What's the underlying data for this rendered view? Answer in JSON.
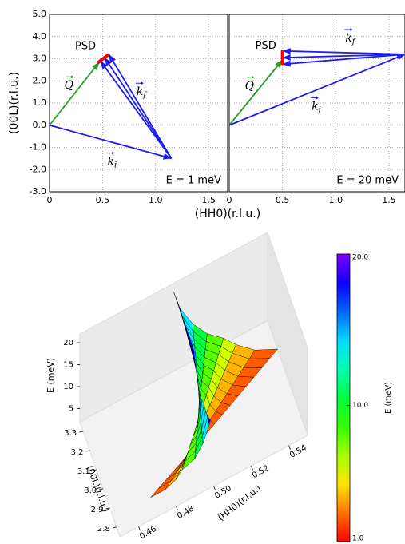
{
  "chart_data": [
    {
      "type": "vector",
      "ylabel": "(00L)(r.l.u.)",
      "xlabel": "(HH0)(r.l.u.)",
      "annotation": "E = 1 meV",
      "xlim": [
        0,
        1.68
      ],
      "ylim": [
        -3,
        5
      ],
      "xticks": [
        0,
        0.5,
        {
          "value": 1,
          "label": "1.0"
        },
        1.5
      ],
      "yticks": [
        {
          "value": -3,
          "label": "-3.0"
        },
        {
          "value": -2,
          "label": "-2.0"
        },
        {
          "value": -1,
          "label": "-1.0"
        },
        {
          "value": 0,
          "label": "0.0"
        },
        {
          "value": 1,
          "label": "1.0"
        },
        {
          "value": 2,
          "label": "2.0"
        },
        {
          "value": 3,
          "label": "3.0"
        },
        {
          "value": 4,
          "label": "4.0"
        },
        {
          "value": 5,
          "label": "5.0"
        }
      ],
      "grid": true,
      "vectors": [
        {
          "label": {
            "symbol": "Q",
            "vec": true
          },
          "color": "#22a022",
          "arrow": true,
          "x": [
            0,
            0.47
          ],
          "y": [
            0,
            2.85
          ]
        },
        {
          "label": {
            "symbol": "k",
            "subscript": "i",
            "vec": true
          },
          "color": "#1c1cf0",
          "arrow": true,
          "x": [
            0,
            1.15
          ],
          "y": [
            0,
            -1.5
          ]
        },
        {
          "color": "#1c1cf0",
          "arrow": true,
          "x": [
            1.15,
            0.48
          ],
          "y": [
            -1.5,
            2.9
          ]
        },
        {
          "label": {
            "symbol": "k",
            "subscript": "f",
            "vec": true
          },
          "color": "#1c1cf0",
          "arrow": true,
          "x": [
            1.15,
            0.52
          ],
          "y": [
            -1.5,
            3.05
          ]
        },
        {
          "color": "#1c1cf0",
          "arrow": true,
          "x": [
            1.15,
            0.56
          ],
          "y": [
            -1.5,
            3.2
          ]
        },
        {
          "label": {
            "symbol": "PSD"
          },
          "color": "#ff0000",
          "arrow": false,
          "x": [
            0.45,
            0.56
          ],
          "y": [
            2.8,
            3.2
          ]
        }
      ]
    },
    {
      "type": "vector",
      "annotation": "E = 20 meV",
      "sharey": true,
      "xlim": [
        0,
        1.65
      ],
      "ylim": [
        -3,
        5
      ],
      "xticks": [
        0,
        0.5,
        {
          "value": 1,
          "label": "1.0"
        },
        1.5
      ],
      "grid": true,
      "vectors": [
        {
          "label": {
            "symbol": "Q",
            "vec": true
          },
          "color": "#22a022",
          "arrow": true,
          "x": [
            0,
            0.5
          ],
          "y": [
            0,
            2.95
          ]
        },
        {
          "label": {
            "symbol": "k",
            "subscript": "i",
            "vec": true
          },
          "color": "#1c1cf0",
          "arrow": true,
          "x": [
            0,
            1.65
          ],
          "y": [
            0,
            3.2
          ]
        },
        {
          "color": "#1c1cf0",
          "arrow": true,
          "x": [
            1.65,
            0.5
          ],
          "y": [
            3.2,
            2.75
          ]
        },
        {
          "label": {
            "symbol": "k",
            "subscript": "f",
            "vec": true
          },
          "color": "#1c1cf0",
          "arrow": true,
          "x": [
            1.65,
            0.5
          ],
          "y": [
            3.2,
            3.05
          ]
        },
        {
          "color": "#1c1cf0",
          "arrow": true,
          "x": [
            1.65,
            0.5
          ],
          "y": [
            3.2,
            3.35
          ]
        },
        {
          "label": {
            "symbol": "PSD"
          },
          "color": "#ff0000",
          "arrow": false,
          "x": [
            0.5,
            0.5
          ],
          "y": [
            2.72,
            3.38
          ]
        }
      ]
    },
    {
      "type": "surface3d",
      "xlabel": "(HH0)(r.l.u.)",
      "ylabel": "(00L)(r.l.u.)",
      "zlabel": "E (meV)",
      "xlim": [
        0.45,
        0.55
      ],
      "ylim": [
        2.75,
        3.35
      ],
      "zlim": [
        2,
        22
      ],
      "xticks": [
        0.46,
        0.48,
        {
          "value": 0.5,
          "label": "0.50"
        },
        0.52,
        0.54
      ],
      "yticks": [
        2.8,
        2.9,
        {
          "value": 3,
          "label": "3.0"
        },
        3.1,
        3.2,
        3.3
      ],
      "zticks": [
        5,
        10,
        15,
        20
      ],
      "colorbar": {
        "label": "E (meV)",
        "lim": [
          1,
          20
        ],
        "ticks": [
          {
            "value": 1,
            "label": "1.0"
          },
          {
            "value": 10,
            "label": "10.0"
          },
          {
            "value": 20,
            "label": "20.0"
          }
        ]
      },
      "sheets": [
        {
          "E": [
            2,
            3,
            5,
            7,
            9,
            12,
            16,
            20
          ],
          "h_start": [
            0.47,
            0.477,
            0.482,
            0.485,
            0.491,
            0.495,
            0.498,
            0.5
          ],
          "h_end": [
            0.51,
            0.508,
            0.506,
            0.505,
            0.503,
            0.502,
            0.501,
            0.5
          ],
          "l_start": [
            2.85,
            2.83,
            2.81,
            2.8,
            2.78,
            2.77,
            2.76,
            2.75
          ],
          "l_end": [
            3.02,
            3.03,
            3.03,
            3.04,
            3.04,
            3.04,
            3.05,
            3.05
          ]
        },
        {
          "E": [
            2,
            3,
            5,
            7,
            9,
            12,
            16,
            20
          ],
          "h_start": [
            0.51,
            0.508,
            0.506,
            0.505,
            0.503,
            0.502,
            0.501,
            0.5
          ],
          "h_end": [
            0.55,
            0.539,
            0.53,
            0.524,
            0.516,
            0.509,
            0.503,
            0.5
          ],
          "l_start": [
            3.02,
            3.03,
            3.03,
            3.04,
            3.04,
            3.04,
            3.05,
            3.05
          ],
          "l_end": [
            3.2,
            3.23,
            3.26,
            3.28,
            3.3,
            3.32,
            3.34,
            3.35
          ]
        }
      ]
    }
  ]
}
